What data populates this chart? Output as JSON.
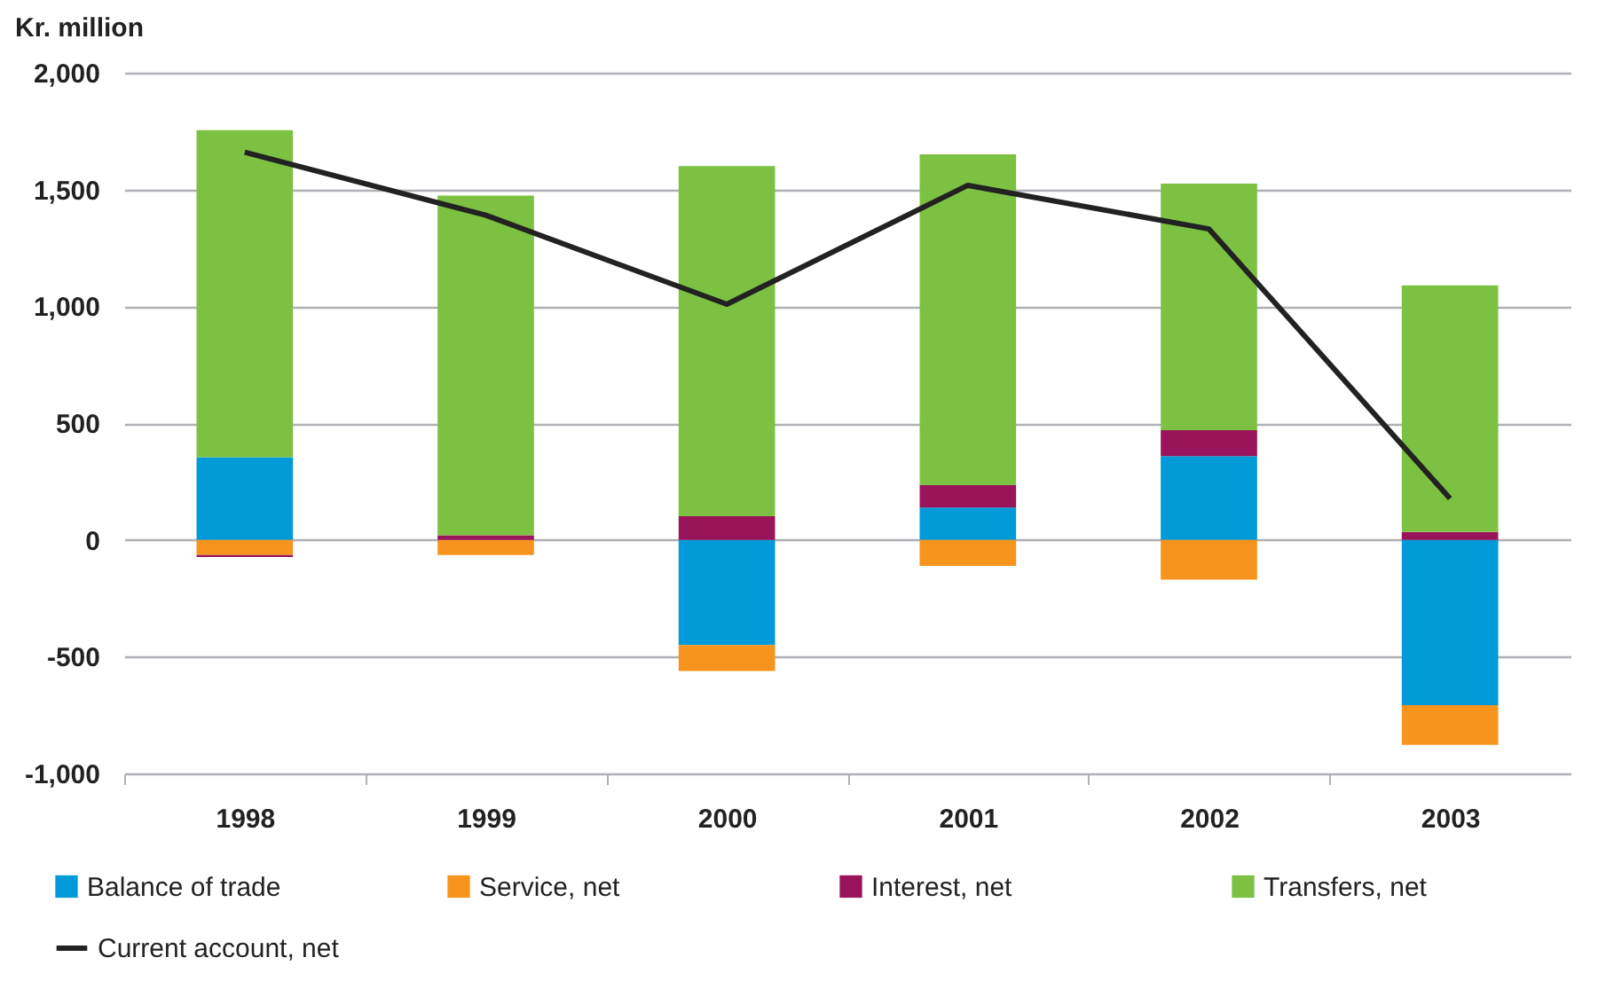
{
  "chart_data": {
    "type": "bar",
    "stacked": true,
    "ylabel": "Kr. million",
    "categories": [
      "1998",
      "1999",
      "2000",
      "2001",
      "2002",
      "2003"
    ],
    "series": [
      {
        "name": "Balance of trade",
        "color": "#009ad8",
        "values": [
          354,
          0,
          -450,
          138,
          359,
          -708
        ]
      },
      {
        "name": "Service, net",
        "color": "#f7941d",
        "values": [
          -65,
          -65,
          -111,
          -111,
          -170,
          -170
        ]
      },
      {
        "name": "Interest, net",
        "color": "#99145a",
        "values": [
          -8,
          20,
          101,
          96,
          111,
          34
        ]
      },
      {
        "name": "Transfers, net",
        "color": "#7cc142",
        "values": [
          1400,
          1454,
          1499,
          1417,
          1055,
          1056
        ]
      },
      {
        "name": "Current account, net",
        "type": "line",
        "color": "#222222",
        "values": [
          1660,
          1390,
          1009,
          1518,
          1331,
          177
        ]
      }
    ],
    "ylim": [
      -1000,
      2000
    ],
    "yticks": [
      {
        "value": -1000,
        "label": "-1,000"
      },
      {
        "value": -500,
        "label": "-500"
      },
      0,
      {
        "value": 500,
        "label": "500"
      },
      {
        "value": 1000,
        "label": "1,000"
      },
      {
        "value": 1500,
        "label": "1,500"
      },
      {
        "value": 2000,
        "label": "2,000"
      }
    ],
    "grid": "y",
    "legend": "bottom",
    "marker": "none",
    "line_style": "solid"
  }
}
